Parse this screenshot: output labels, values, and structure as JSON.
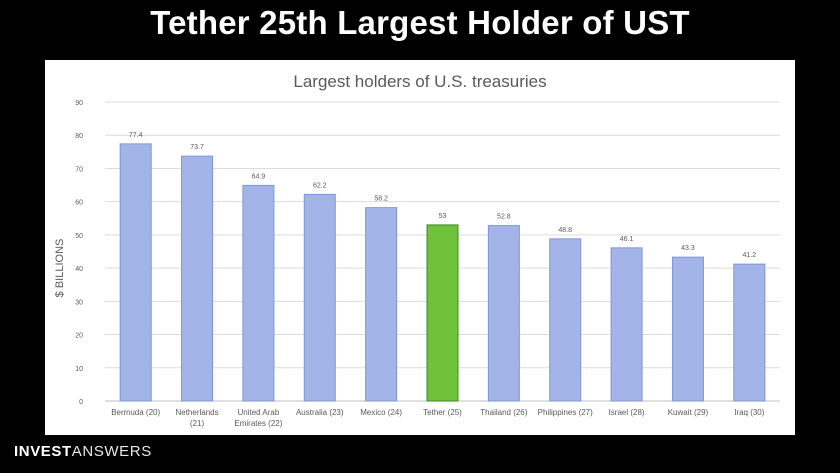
{
  "header": {
    "title": "Tether 25th Largest Holder of UST"
  },
  "brand": {
    "part1": "INVEST",
    "part2": "ANSWERS"
  },
  "colors": {
    "bar_fill": "#a3b5e8",
    "bar_stroke": "#7f95d6",
    "highlight_fill": "#6fc23a",
    "highlight_stroke": "#3d8a20",
    "grid": "#dcdcdc",
    "text": "#595959"
  },
  "chart_data": {
    "type": "bar",
    "title": "Largest holders of U.S. treasuries",
    "xlabel": "",
    "ylabel": "$ BILLIONS",
    "ylim": [
      0,
      90
    ],
    "yticks": [
      0,
      10,
      20,
      30,
      40,
      50,
      60,
      70,
      80,
      90
    ],
    "grid": true,
    "categories": [
      [
        "Bermuda (20)"
      ],
      [
        "Netherlands",
        "(21)"
      ],
      [
        "United Arab",
        "Emirates (22)"
      ],
      [
        "Australia (23)"
      ],
      [
        "Mexico (24)"
      ],
      [
        "Tether (25)"
      ],
      [
        "Thailand (26)"
      ],
      [
        "Philippines (27)"
      ],
      [
        "Israel (28)"
      ],
      [
        "Kuwait (29)"
      ],
      [
        "Iraq (30)"
      ]
    ],
    "values": [
      77.4,
      73.7,
      64.9,
      62.2,
      58.2,
      53,
      52.8,
      48.8,
      46.1,
      43.3,
      41.2
    ],
    "value_labels": [
      "77.4",
      "73.7",
      "64.9",
      "62.2",
      "58.2",
      "53",
      "52.8",
      "48.8",
      "46.1",
      "43.3",
      "41.2"
    ],
    "highlight": "Tether (25)"
  }
}
